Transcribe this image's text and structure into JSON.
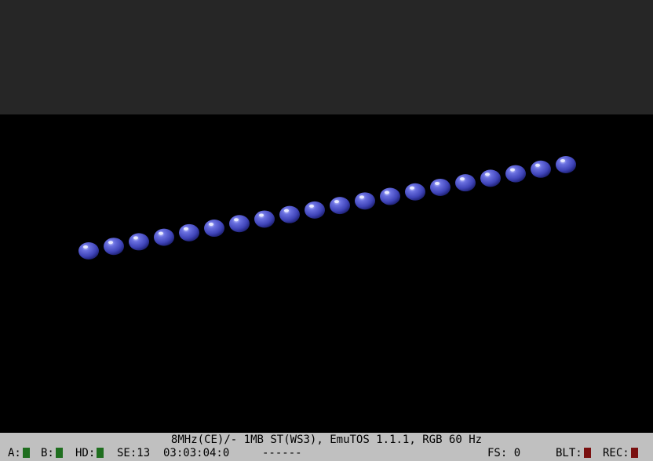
{
  "status": {
    "line1": "8MHz(CE)/- 1MB ST(WS3), EmuTOS 1.1.1, RGB 60 Hz",
    "drive_a_label": "A:",
    "drive_b_label": "B:",
    "drive_hd_label": "HD:",
    "se_label": "SE:13",
    "timecode": "03:03:04:0",
    "dashes": "------",
    "fs_label": "FS: 0",
    "blt_label": "BLT:",
    "rec_label": "REC:"
  },
  "colors": {
    "border": "#262626",
    "screen": "#000000",
    "statusbar": "#c0c0c0",
    "led_green": "#1f6e1f",
    "led_red": "#7a1010",
    "ball": "#3f44b8"
  },
  "balls": {
    "count": 20,
    "icon": "blue-ball-sprite"
  }
}
